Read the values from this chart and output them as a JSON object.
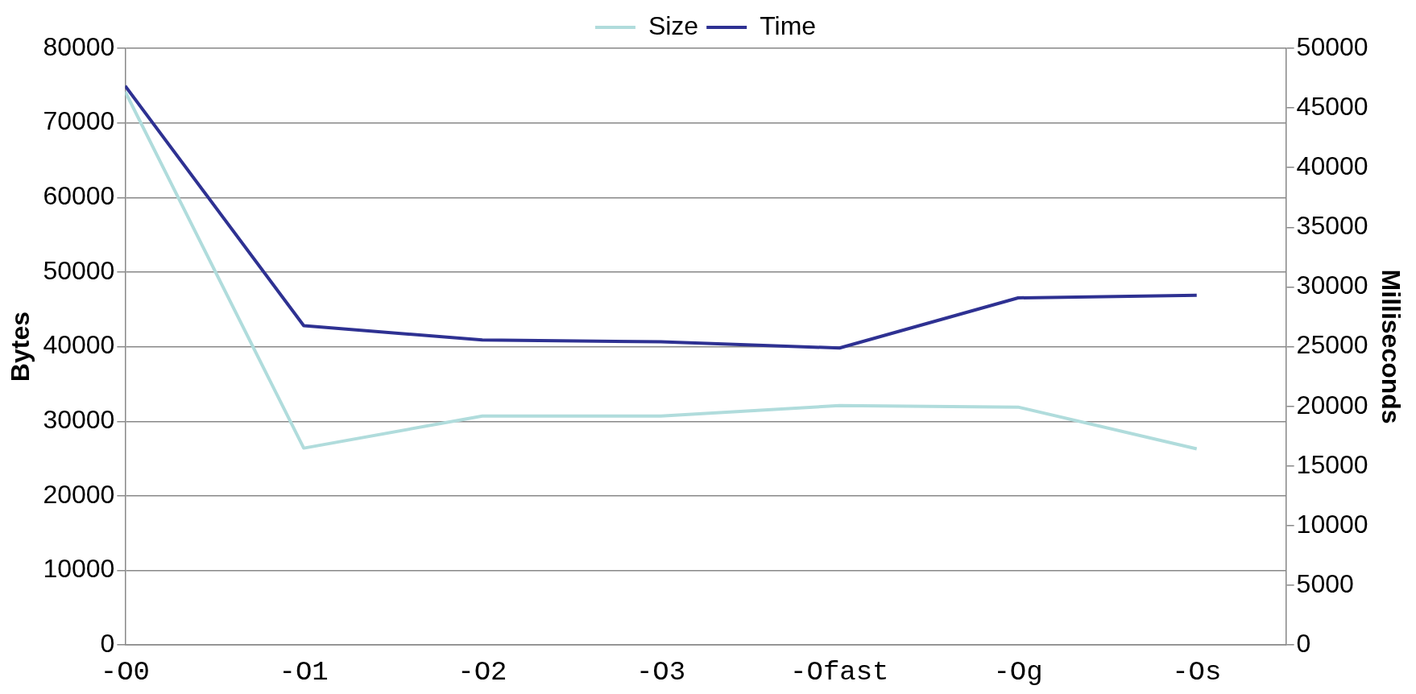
{
  "chart_data": {
    "type": "line",
    "categories": [
      "-O0",
      "-O1",
      "-O2",
      "-O3",
      "-Ofast",
      "-Og",
      "-Os"
    ],
    "ylabel": "Bytes",
    "y2label": "Milliseconds",
    "ylim": [
      0,
      80000
    ],
    "yticks": [
      0,
      10000,
      20000,
      30000,
      40000,
      50000,
      60000,
      70000,
      80000
    ],
    "y2lim": [
      0,
      50000
    ],
    "y2ticks": [
      0,
      5000,
      10000,
      15000,
      20000,
      25000,
      30000,
      35000,
      40000,
      45000,
      50000
    ],
    "series": [
      {
        "name": "Size",
        "color": "#b0dcdc",
        "values": [
          74200,
          26400,
          30700,
          30700,
          32100,
          31900,
          26300
        ]
      },
      {
        "name": "Time",
        "color": "#2e3192",
        "axis": "y2",
        "values": [
          46850,
          26760,
          25560,
          25410,
          24890,
          29090,
          29310
        ]
      }
    ],
    "grid": "y",
    "legend": "top",
    "marker": "none",
    "line_style": "solid"
  }
}
